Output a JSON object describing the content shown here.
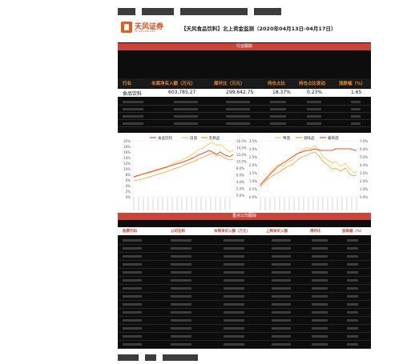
{
  "header": {
    "logo_text": "天风证券",
    "logo_sub": "TF SECURITIES",
    "report_title": "【天风食品饮料】北上资金监测（2020年04月13日-04月17日）"
  },
  "industry_section": {
    "title": "行业跟踪",
    "columns": [
      "行业",
      "本周净买入额（万元）",
      "周环比（万元）",
      "持仓占比",
      "持仓占比变动",
      "涨跌幅（%）"
    ],
    "row": [
      "食品饮料",
      "603,785.27",
      "299,642.75",
      "18.37%",
      "0.23%",
      "1.65"
    ]
  },
  "chart_left": {
    "legend": [
      "食品饮料",
      "白酒",
      "乳制品"
    ],
    "left_ticks": [
      "20%",
      "18%",
      "16%",
      "14%",
      "12%",
      "10%",
      "8%",
      "6%",
      "4%",
      "2%",
      "0%"
    ],
    "right_ticks": [
      "16.0%",
      "14.0%",
      "12.0%",
      "10.0%",
      "8.0%",
      "6.0%",
      "4.0%",
      "2.0%",
      "0.0%"
    ]
  },
  "chart_right": {
    "legend": [
      "啤酒",
      "调味品",
      "葡萄酒"
    ],
    "left_ticks": [
      "3.5%",
      "3.0%",
      "2.5%",
      "2.0%",
      "1.5%",
      "1.0%",
      "0.5%",
      "0.0%"
    ],
    "right_ticks": [
      "7.0%",
      "6.0%",
      "5.0%",
      "4.0%",
      "3.0%",
      "2.0%",
      "1.0%",
      "0.0%"
    ]
  },
  "companies_section": {
    "title": "重点公司跟踪",
    "columns": [
      "股票代码",
      "公司名称",
      "本周净买入额（万元）",
      "上周净买入额",
      "周环比",
      "涨跌幅（%）"
    ]
  },
  "colors": {
    "accent_red": "#c9453a",
    "header_orange": "#e08a38",
    "line_red": "#e8503a",
    "line_orange": "#f0a030",
    "line_yellow": "#f2c94c"
  }
}
